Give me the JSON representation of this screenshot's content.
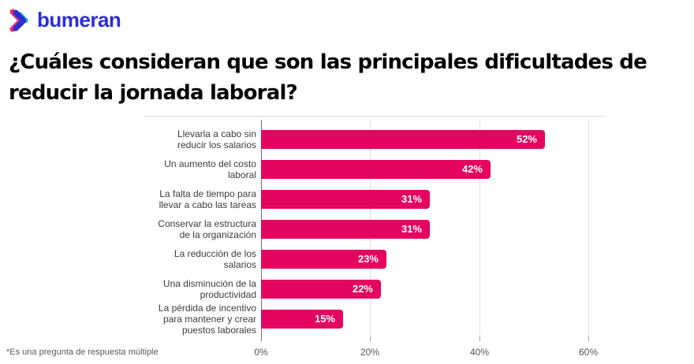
{
  "logo": {
    "brand": "bumeran",
    "icon": "bumeran-chevron-icon"
  },
  "colors": {
    "logo_blue": "#2B2FD4",
    "logo_pink": "#F02A6E",
    "logo_cyan": "#3BC8D4",
    "bar_pink": "#E40560"
  },
  "title": "¿Cuáles consideran que son las principales dificultades de\nreducir la jornada laboral?",
  "footnote": "*Es una pregunta de respuesta múltiple",
  "chart_data": {
    "type": "bar",
    "orientation": "horizontal",
    "title": "¿Cuáles consideran que son las principales dificultades de reducir la jornada laboral?",
    "categories": [
      "Llevarla a cabo sin\nreducir los salarios",
      "Un aumento del costo\nlaboral",
      "La falta de tiempo para\nllevar a cabo las tareas",
      "Conservar la estructura\nde la organización",
      "La reducción de los\nsalarios",
      "Una disminución de la\nproductividad",
      "La pérdida de incentivo\npara mantener y crear\npuestos laborales"
    ],
    "values": [
      52,
      42,
      31,
      31,
      23,
      22,
      15
    ],
    "value_labels": [
      "52%",
      "42%",
      "31%",
      "31%",
      "23%",
      "22%",
      "15%"
    ],
    "xticks": [
      "0%",
      "20%",
      "40%",
      "60%"
    ],
    "xtick_values": [
      0,
      20,
      40,
      60
    ],
    "xlim": [
      0,
      79
    ],
    "grid": true,
    "legend": false,
    "bar_color": "#E40560",
    "value_label_color": "#FFFFFF"
  }
}
